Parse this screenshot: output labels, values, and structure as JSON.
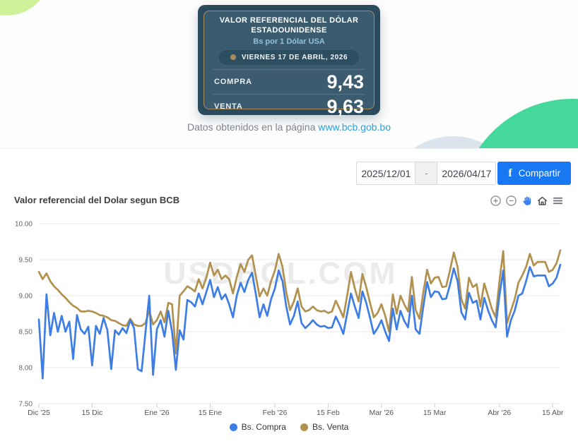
{
  "rate_card": {
    "title_line1": "VALOR REFERENCIAL DEL DÓLAR",
    "title_line2": "ESTADOUNIDENSE",
    "subtitle": "Bs por 1 Dólar USA",
    "date_pill": "VIERNES 17 DE ABRIL, 2026",
    "rows": [
      {
        "label": "COMPRA",
        "value": "9,43"
      },
      {
        "label": "VENTA",
        "value": "9,63"
      }
    ]
  },
  "source_note": {
    "text": "Datos obtenidos en la página ",
    "link": "www.bcb.gob.bo"
  },
  "controls": {
    "date_from": "2025/12/01",
    "separator": "-",
    "date_to": "2026/04/17",
    "share_icon": "facebook-f",
    "share_f": "f",
    "share_label": "Compartir"
  },
  "chart": {
    "title": "Valor referencial del Dolar segun BCB",
    "toolbar": [
      "zoom-in",
      "zoom-out",
      "pan",
      "reset-home",
      "menu"
    ],
    "watermark": "USDBOL.COM"
  },
  "colors": {
    "compra_blue": "#3e7ee4",
    "venta_tan": "#b2914f",
    "facebook_blue": "#1877f2",
    "link_blue": "#2d9fd8",
    "card_outer": "#2b4a5e",
    "card_inner": "#3b5c6f",
    "gold_accent": "#a98e5c",
    "decor_lime": "#cdf29a",
    "decor_green": "#45d89c",
    "decor_gray_blue": "#dbe3ed"
  },
  "chart_data": {
    "type": "line",
    "title": "Valor referencial del Dolar segun BCB",
    "x_start_date": "2025-12-01",
    "x_end_date": "2026-04-17",
    "x_unit": "day",
    "ylim": [
      7.5,
      10.0
    ],
    "y_ticks": [
      7.5,
      8.0,
      8.5,
      9.0,
      9.5,
      10.0
    ],
    "grid": "horizontal",
    "legend_position": "bottom",
    "x_ticks": [
      {
        "day": 0,
        "label": "Dic '25"
      },
      {
        "day": 14,
        "label": "15 Dic"
      },
      {
        "day": 31,
        "label": "Ene '26"
      },
      {
        "day": 45,
        "label": "15 Ene"
      },
      {
        "day": 62,
        "label": "Feb '26"
      },
      {
        "day": 76,
        "label": "15 Feb"
      },
      {
        "day": 90,
        "label": "Mar '26"
      },
      {
        "day": 104,
        "label": "15 Mar"
      },
      {
        "day": 121,
        "label": "Abr '26"
      },
      {
        "day": 135,
        "label": "15 Abr"
      }
    ],
    "series": [
      {
        "name": "Bs. Compra",
        "color": "#3e7ee4",
        "values": [
          8.67,
          7.85,
          9.02,
          8.45,
          8.76,
          8.5,
          8.72,
          8.5,
          8.64,
          8.12,
          8.73,
          8.53,
          8.47,
          8.57,
          8.03,
          8.58,
          8.47,
          8.69,
          8.52,
          7.98,
          8.52,
          8.46,
          8.55,
          8.48,
          8.66,
          8.55,
          7.98,
          7.95,
          8.48,
          9.0,
          7.9,
          8.53,
          8.66,
          8.43,
          8.79,
          8.5,
          7.97,
          8.52,
          8.39,
          8.94,
          8.91,
          8.85,
          9.03,
          8.88,
          9.05,
          9.22,
          8.98,
          9.12,
          8.95,
          9.02,
          8.88,
          8.7,
          9.0,
          9.18,
          9.05,
          9.22,
          9.32,
          9.02,
          8.7,
          8.88,
          8.72,
          8.95,
          9.1,
          9.35,
          9.2,
          8.85,
          8.6,
          8.72,
          8.92,
          8.62,
          8.55,
          8.6,
          8.66,
          8.6,
          8.57,
          8.58,
          8.55,
          8.56,
          8.71,
          8.6,
          8.47,
          8.75,
          9.03,
          8.85,
          8.69,
          9.06,
          8.9,
          8.69,
          8.47,
          8.55,
          8.66,
          8.5,
          8.37,
          8.82,
          8.53,
          8.79,
          8.65,
          8.56,
          9.0,
          8.53,
          8.47,
          8.85,
          9.19,
          8.98,
          9.06,
          9.05,
          8.95,
          8.96,
          9.15,
          9.38,
          9.2,
          8.77,
          8.67,
          9.04,
          8.9,
          8.93,
          8.67,
          8.97,
          8.8,
          8.66,
          8.56,
          9.0,
          9.35,
          8.43,
          8.66,
          8.79,
          9.0,
          9.03,
          9.2,
          9.4,
          9.27,
          9.28,
          9.28,
          9.28,
          9.13,
          9.17,
          9.25,
          9.43
        ]
      },
      {
        "name": "Bs. Venta",
        "color": "#b2914f",
        "values": [
          9.33,
          9.23,
          9.31,
          9.2,
          9.13,
          9.08,
          9.02,
          8.97,
          8.91,
          8.86,
          8.83,
          8.78,
          8.78,
          8.79,
          8.78,
          8.76,
          8.73,
          8.72,
          8.7,
          8.66,
          8.65,
          8.62,
          8.59,
          8.58,
          8.68,
          8.6,
          8.58,
          8.58,
          8.62,
          8.79,
          8.6,
          8.66,
          8.78,
          8.63,
          8.9,
          8.88,
          8.2,
          9.0,
          9.06,
          9.13,
          9.1,
          9.06,
          9.23,
          9.1,
          9.25,
          9.46,
          9.28,
          9.36,
          9.23,
          9.28,
          9.23,
          9.03,
          9.26,
          9.44,
          9.33,
          9.5,
          9.56,
          9.27,
          8.99,
          9.1,
          9.0,
          9.2,
          9.35,
          9.58,
          9.4,
          9.05,
          8.8,
          8.92,
          9.1,
          8.85,
          8.78,
          8.8,
          8.85,
          8.8,
          8.78,
          8.79,
          8.76,
          8.78,
          8.93,
          8.82,
          8.7,
          9.0,
          9.33,
          9.1,
          8.92,
          9.3,
          9.12,
          8.9,
          8.7,
          8.76,
          8.88,
          8.72,
          8.5,
          9.02,
          8.75,
          9.0,
          8.88,
          8.78,
          9.26,
          8.8,
          8.68,
          9.05,
          9.36,
          9.17,
          9.25,
          9.26,
          9.12,
          9.13,
          9.35,
          9.6,
          9.4,
          8.95,
          8.82,
          9.25,
          9.12,
          9.16,
          8.85,
          9.17,
          9.0,
          8.82,
          8.7,
          9.2,
          9.62,
          8.62,
          8.79,
          8.95,
          9.18,
          9.28,
          9.4,
          9.58,
          9.42,
          9.47,
          9.47,
          9.47,
          9.33,
          9.36,
          9.45,
          9.63
        ]
      }
    ]
  }
}
